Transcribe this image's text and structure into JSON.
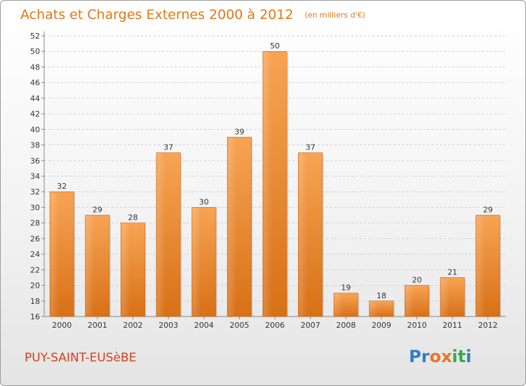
{
  "chart_data": {
    "type": "bar",
    "title": "Achats et Charges Externes 2000 à 2012",
    "subtitle": "(en milliers d'€)",
    "categories": [
      "2000",
      "2001",
      "2002",
      "2003",
      "2004",
      "2005",
      "2006",
      "2007",
      "2008",
      "2009",
      "2010",
      "2011",
      "2012"
    ],
    "values": [
      32,
      29,
      28,
      37,
      30,
      39,
      50,
      37,
      19,
      18,
      20,
      21,
      29
    ],
    "ylim": [
      16,
      52
    ],
    "yticks": [
      16,
      18,
      20,
      22,
      24,
      26,
      28,
      30,
      32,
      34,
      36,
      38,
      40,
      42,
      44,
      46,
      48,
      50,
      52
    ],
    "grid": true,
    "xlabel": "",
    "ylabel": "",
    "bar_color": "#f0902a"
  },
  "commune": "PUY-SAINT-EUSèBE",
  "logo": {
    "text": "Proxiti",
    "colors": [
      "#2f7fc8",
      "#2f7fc8",
      "#e8742a",
      "#e8742a",
      "#3aa84a",
      "#3aa84a",
      "#2f7fc8"
    ]
  }
}
